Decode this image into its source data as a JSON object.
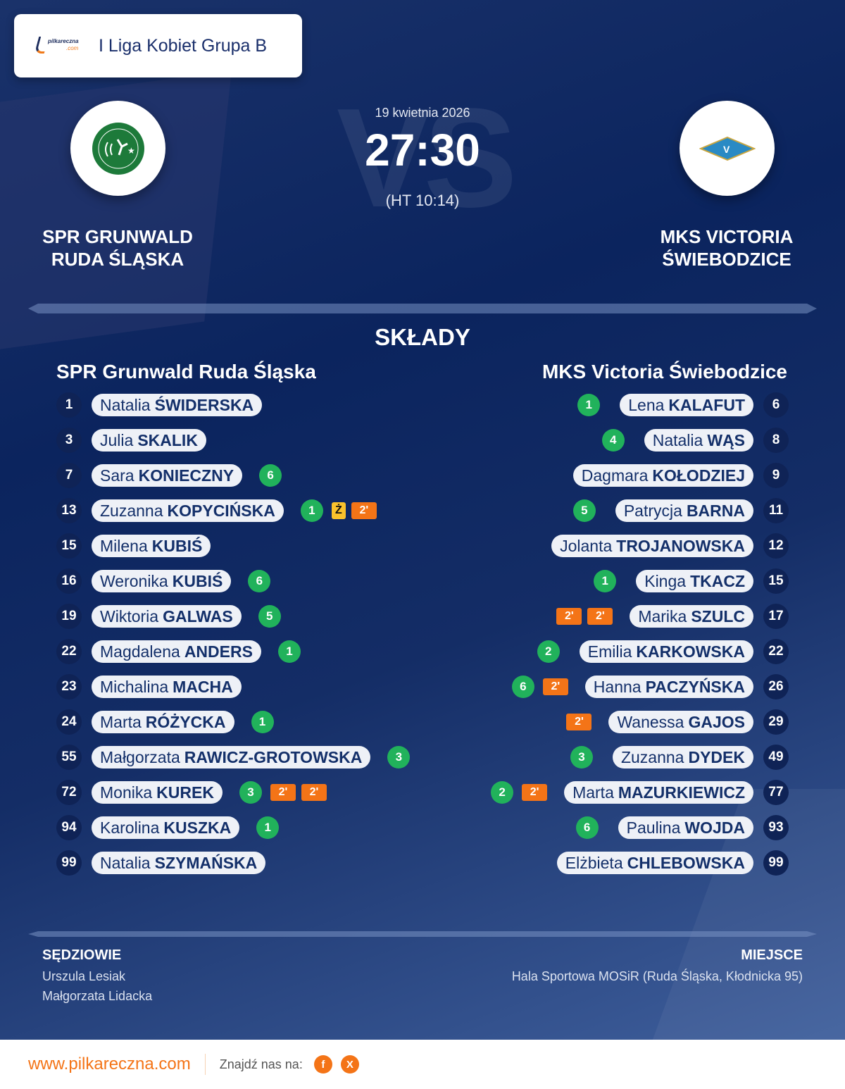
{
  "league": {
    "name": "I Liga Kobiet Grupa B",
    "logo_text": "pilkareczna",
    "logo_sub": ".com"
  },
  "match": {
    "date": "19 kwietnia 2026",
    "score": "27:30",
    "halftime": "(HT 10:14)",
    "vs_watermark": "VS"
  },
  "home": {
    "name_line1": "SPR GRUNWALD",
    "name_line2": "RUDA ŚLĄSKA",
    "lineup_title": "SPR Grunwald Ruda Śląska",
    "crest_color": "#1d7a3a",
    "players": [
      {
        "num": "1",
        "first": "Natalia",
        "last": "ŚWIDERSKA",
        "events": []
      },
      {
        "num": "3",
        "first": "Julia",
        "last": "SKALIK",
        "events": []
      },
      {
        "num": "7",
        "first": "Sara",
        "last": "KONIECZNY",
        "events": [
          {
            "type": "goal",
            "text": "6"
          }
        ]
      },
      {
        "num": "13",
        "first": "Zuzanna",
        "last": "KOPYCIŃSKA",
        "events": [
          {
            "type": "goal",
            "text": "1"
          },
          {
            "type": "yellow",
            "text": "Ż"
          },
          {
            "type": "pen",
            "text": "2'"
          }
        ]
      },
      {
        "num": "15",
        "first": "Milena",
        "last": "KUBIŚ",
        "events": []
      },
      {
        "num": "16",
        "first": "Weronika",
        "last": "KUBIŚ",
        "events": [
          {
            "type": "goal",
            "text": "6"
          }
        ]
      },
      {
        "num": "19",
        "first": "Wiktoria",
        "last": "GALWAS",
        "events": [
          {
            "type": "goal",
            "text": "5"
          }
        ]
      },
      {
        "num": "22",
        "first": "Magdalena",
        "last": "ANDERS",
        "events": [
          {
            "type": "goal",
            "text": "1"
          }
        ]
      },
      {
        "num": "23",
        "first": "Michalina",
        "last": "MACHA",
        "events": []
      },
      {
        "num": "24",
        "first": "Marta",
        "last": "RÓŻYCKA",
        "events": [
          {
            "type": "goal",
            "text": "1"
          }
        ]
      },
      {
        "num": "55",
        "first": "Małgorzata",
        "last": "RAWICZ-GROTOWSKA",
        "events": [
          {
            "type": "goal",
            "text": "3"
          }
        ]
      },
      {
        "num": "72",
        "first": "Monika",
        "last": "KUREK",
        "events": [
          {
            "type": "goal",
            "text": "3"
          },
          {
            "type": "pen",
            "text": "2'"
          },
          {
            "type": "pen",
            "text": "2'"
          }
        ]
      },
      {
        "num": "94",
        "first": "Karolina",
        "last": "KUSZKA",
        "events": [
          {
            "type": "goal",
            "text": "1"
          }
        ]
      },
      {
        "num": "99",
        "first": "Natalia",
        "last": "SZYMAŃSKA",
        "events": []
      }
    ]
  },
  "away": {
    "name_line1": "MKS VICTORIA",
    "name_line2": "ŚWIEBODZICE",
    "lineup_title": "MKS Victoria Świebodzice",
    "crest_color": "#2a8ac4",
    "players": [
      {
        "num": "6",
        "first": "Lena",
        "last": "KALAFUT",
        "events": [
          {
            "type": "goal",
            "text": "1"
          }
        ]
      },
      {
        "num": "8",
        "first": "Natalia",
        "last": "WĄS",
        "events": [
          {
            "type": "goal",
            "text": "4"
          }
        ]
      },
      {
        "num": "9",
        "first": "Dagmara",
        "last": "KOŁODZIEJ",
        "events": []
      },
      {
        "num": "11",
        "first": "Patrycja",
        "last": "BARNA",
        "events": [
          {
            "type": "goal",
            "text": "5"
          }
        ]
      },
      {
        "num": "12",
        "first": "Jolanta",
        "last": "TROJANOWSKA",
        "events": []
      },
      {
        "num": "15",
        "first": "Kinga",
        "last": "TKACZ",
        "events": [
          {
            "type": "goal",
            "text": "1"
          }
        ]
      },
      {
        "num": "17",
        "first": "Marika",
        "last": "SZULC",
        "events": [
          {
            "type": "pen",
            "text": "2'"
          },
          {
            "type": "pen",
            "text": "2'"
          }
        ]
      },
      {
        "num": "22",
        "first": "Emilia",
        "last": "KARKOWSKA",
        "events": [
          {
            "type": "goal",
            "text": "2"
          }
        ]
      },
      {
        "num": "26",
        "first": "Hanna",
        "last": "PACZYŃSKA",
        "events": [
          {
            "type": "goal",
            "text": "6"
          },
          {
            "type": "pen",
            "text": "2'"
          }
        ]
      },
      {
        "num": "29",
        "first": "Wanessa",
        "last": "GAJOS",
        "events": [
          {
            "type": "pen",
            "text": "2'"
          }
        ]
      },
      {
        "num": "49",
        "first": "Zuzanna",
        "last": "DYDEK",
        "events": [
          {
            "type": "goal",
            "text": "3"
          }
        ]
      },
      {
        "num": "77",
        "first": "Marta",
        "last": "MAZURKIEWICZ",
        "events": [
          {
            "type": "goal",
            "text": "2"
          },
          {
            "type": "pen",
            "text": "2'"
          }
        ]
      },
      {
        "num": "93",
        "first": "Paulina",
        "last": "WOJDA",
        "events": [
          {
            "type": "goal",
            "text": "6"
          }
        ]
      },
      {
        "num": "99",
        "first": "Elżbieta",
        "last": "CHLEBOWSKA",
        "events": []
      }
    ]
  },
  "section_title": "SKŁADY",
  "referees": {
    "title": "SĘDZIOWIE",
    "names": [
      "Urszula Lesiak",
      "Małgorzata Lidacka"
    ]
  },
  "venue": {
    "title": "MIEJSCE",
    "text": "Hala Sportowa MOSiR (Ruda Śląska, Kłodnicka 95)"
  },
  "footer": {
    "site": "www.pilkareczna.com",
    "find_us": "Znajdź nas na:",
    "social": [
      {
        "icon": "facebook-icon",
        "text": "f"
      },
      {
        "icon": "x-icon",
        "text": "X"
      }
    ]
  },
  "colors": {
    "goal": "#21b25b",
    "two_min": "#f47417",
    "yellow": "#fbc22c",
    "accent": "#f47417"
  }
}
